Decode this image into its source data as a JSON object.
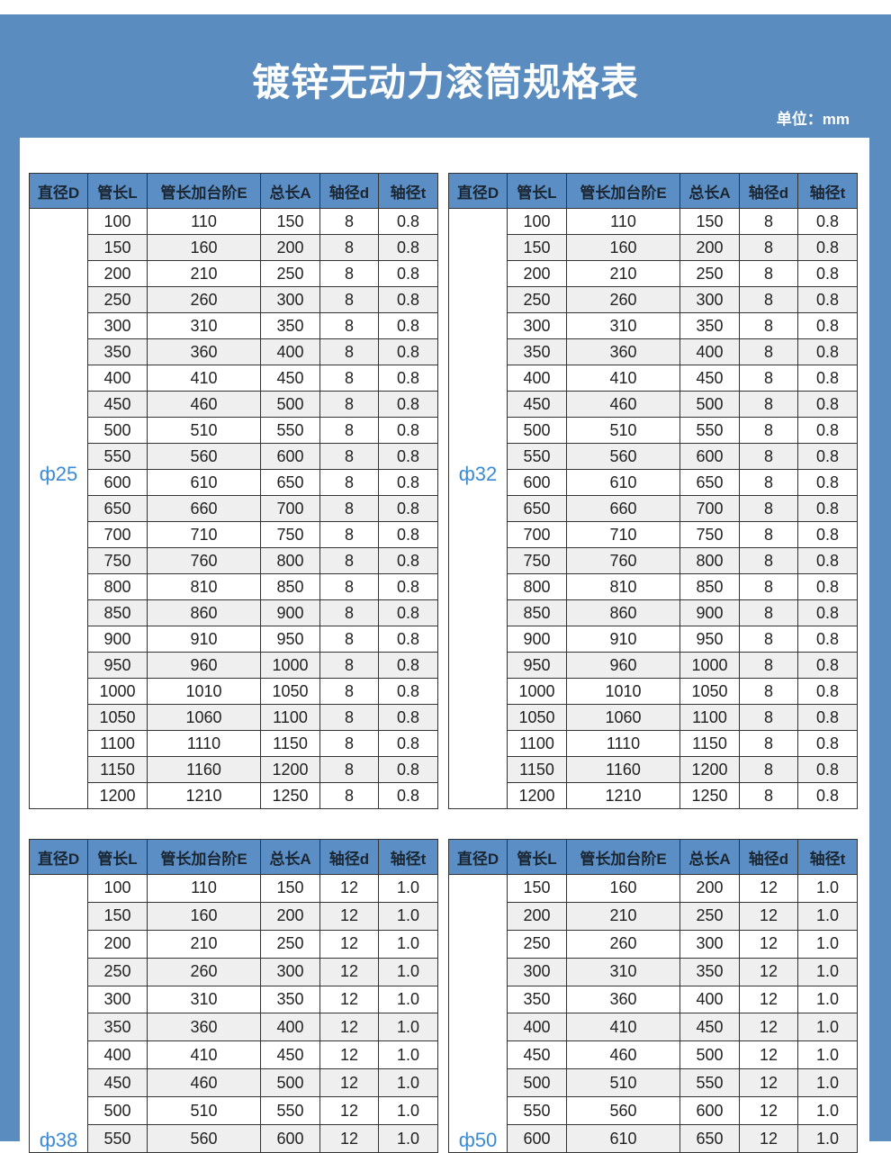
{
  "title": "镀锌无动力滚筒规格表",
  "unit": "单位：mm",
  "colors": {
    "background": "#5b8cbf",
    "header": "#5b8ec4",
    "diameter_label": "#3b8ad4",
    "alt_row": "#efefef"
  },
  "headers": [
    "直径D",
    "管长L",
    "管长加台阶E",
    "总长A",
    "轴径d",
    "轴径t"
  ],
  "tables": [
    {
      "diameter": "ф25",
      "rows": [
        [
          "100",
          "110",
          "150",
          "8",
          "0.8"
        ],
        [
          "150",
          "160",
          "200",
          "8",
          "0.8"
        ],
        [
          "200",
          "210",
          "250",
          "8",
          "0.8"
        ],
        [
          "250",
          "260",
          "300",
          "8",
          "0.8"
        ],
        [
          "300",
          "310",
          "350",
          "8",
          "0.8"
        ],
        [
          "350",
          "360",
          "400",
          "8",
          "0.8"
        ],
        [
          "400",
          "410",
          "450",
          "8",
          "0.8"
        ],
        [
          "450",
          "460",
          "500",
          "8",
          "0.8"
        ],
        [
          "500",
          "510",
          "550",
          "8",
          "0.8"
        ],
        [
          "550",
          "560",
          "600",
          "8",
          "0.8"
        ],
        [
          "600",
          "610",
          "650",
          "8",
          "0.8"
        ],
        [
          "650",
          "660",
          "700",
          "8",
          "0.8"
        ],
        [
          "700",
          "710",
          "750",
          "8",
          "0.8"
        ],
        [
          "750",
          "760",
          "800",
          "8",
          "0.8"
        ],
        [
          "800",
          "810",
          "850",
          "8",
          "0.8"
        ],
        [
          "850",
          "860",
          "900",
          "8",
          "0.8"
        ],
        [
          "900",
          "910",
          "950",
          "8",
          "0.8"
        ],
        [
          "950",
          "960",
          "1000",
          "8",
          "0.8"
        ],
        [
          "1000",
          "1010",
          "1050",
          "8",
          "0.8"
        ],
        [
          "1050",
          "1060",
          "1100",
          "8",
          "0.8"
        ],
        [
          "1100",
          "1110",
          "1150",
          "8",
          "0.8"
        ],
        [
          "1150",
          "1160",
          "1200",
          "8",
          "0.8"
        ],
        [
          "1200",
          "1210",
          "1250",
          "8",
          "0.8"
        ]
      ]
    },
    {
      "diameter": "ф32",
      "rows": [
        [
          "100",
          "110",
          "150",
          "8",
          "0.8"
        ],
        [
          "150",
          "160",
          "200",
          "8",
          "0.8"
        ],
        [
          "200",
          "210",
          "250",
          "8",
          "0.8"
        ],
        [
          "250",
          "260",
          "300",
          "8",
          "0.8"
        ],
        [
          "300",
          "310",
          "350",
          "8",
          "0.8"
        ],
        [
          "350",
          "360",
          "400",
          "8",
          "0.8"
        ],
        [
          "400",
          "410",
          "450",
          "8",
          "0.8"
        ],
        [
          "450",
          "460",
          "500",
          "8",
          "0.8"
        ],
        [
          "500",
          "510",
          "550",
          "8",
          "0.8"
        ],
        [
          "550",
          "560",
          "600",
          "8",
          "0.8"
        ],
        [
          "600",
          "610",
          "650",
          "8",
          "0.8"
        ],
        [
          "650",
          "660",
          "700",
          "8",
          "0.8"
        ],
        [
          "700",
          "710",
          "750",
          "8",
          "0.8"
        ],
        [
          "750",
          "760",
          "800",
          "8",
          "0.8"
        ],
        [
          "800",
          "810",
          "850",
          "8",
          "0.8"
        ],
        [
          "850",
          "860",
          "900",
          "8",
          "0.8"
        ],
        [
          "900",
          "910",
          "950",
          "8",
          "0.8"
        ],
        [
          "950",
          "960",
          "1000",
          "8",
          "0.8"
        ],
        [
          "1000",
          "1010",
          "1050",
          "8",
          "0.8"
        ],
        [
          "1050",
          "1060",
          "1100",
          "8",
          "0.8"
        ],
        [
          "1100",
          "1110",
          "1150",
          "8",
          "0.8"
        ],
        [
          "1150",
          "1160",
          "1200",
          "8",
          "0.8"
        ],
        [
          "1200",
          "1210",
          "1250",
          "8",
          "0.8"
        ]
      ]
    },
    {
      "diameter": "ф38",
      "rows": [
        [
          "100",
          "110",
          "150",
          "12",
          "1.0"
        ],
        [
          "150",
          "160",
          "200",
          "12",
          "1.0"
        ],
        [
          "200",
          "210",
          "250",
          "12",
          "1.0"
        ],
        [
          "250",
          "260",
          "300",
          "12",
          "1.0"
        ],
        [
          "300",
          "310",
          "350",
          "12",
          "1.0"
        ],
        [
          "350",
          "360",
          "400",
          "12",
          "1.0"
        ],
        [
          "400",
          "410",
          "450",
          "12",
          "1.0"
        ],
        [
          "450",
          "460",
          "500",
          "12",
          "1.0"
        ],
        [
          "500",
          "510",
          "550",
          "12",
          "1.0"
        ],
        [
          "550",
          "560",
          "600",
          "12",
          "1.0"
        ]
      ]
    },
    {
      "diameter": "ф50",
      "rows": [
        [
          "150",
          "160",
          "200",
          "12",
          "1.0"
        ],
        [
          "200",
          "210",
          "250",
          "12",
          "1.0"
        ],
        [
          "250",
          "260",
          "300",
          "12",
          "1.0"
        ],
        [
          "300",
          "310",
          "350",
          "12",
          "1.0"
        ],
        [
          "350",
          "360",
          "400",
          "12",
          "1.0"
        ],
        [
          "400",
          "410",
          "450",
          "12",
          "1.0"
        ],
        [
          "450",
          "460",
          "500",
          "12",
          "1.0"
        ],
        [
          "500",
          "510",
          "550",
          "12",
          "1.0"
        ],
        [
          "550",
          "560",
          "600",
          "12",
          "1.0"
        ],
        [
          "600",
          "610",
          "650",
          "12",
          "1.0"
        ]
      ]
    }
  ]
}
